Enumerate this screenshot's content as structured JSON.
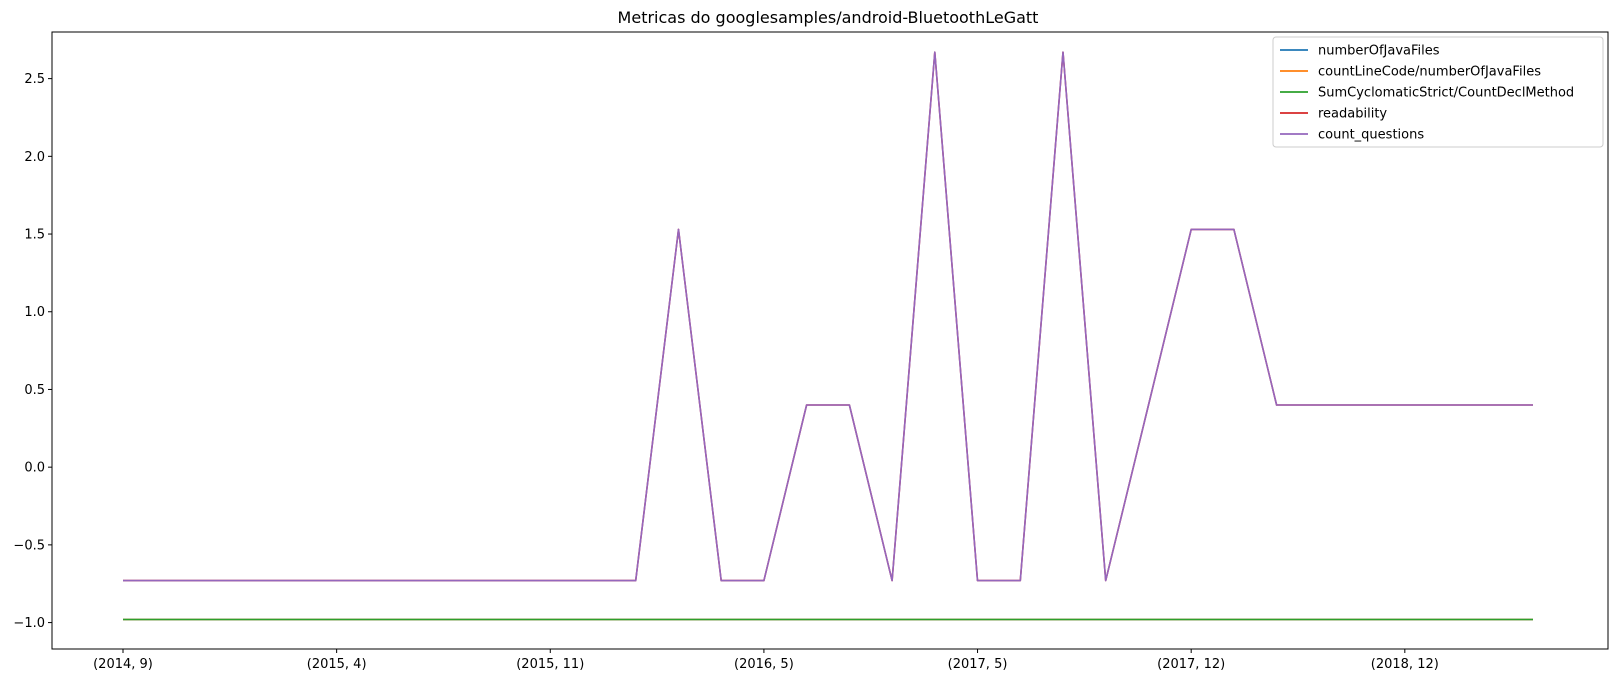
{
  "chart_data": {
    "type": "line",
    "title": "Metricas do googlesamples/android-BluetoothLeGatt",
    "xlabel": "",
    "ylabel": "",
    "x_tick_labels": [
      "(2014, 9)",
      "(2015, 4)",
      "(2015, 11)",
      "(2016, 5)",
      "(2017, 5)",
      "(2017, 12)",
      "(2018, 12)"
    ],
    "x_tick_indices": [
      0,
      5,
      10,
      15,
      20,
      25,
      30
    ],
    "x_count": 34,
    "ylim": [
      -1.17,
      2.8
    ],
    "y_ticks": [
      -1.0,
      -0.5,
      0.0,
      0.5,
      1.0,
      1.5,
      2.0,
      2.5
    ],
    "grid": false,
    "legend_position": "top-right",
    "series": [
      {
        "name": "numberOfJavaFiles",
        "color": "#1f77b4",
        "values": [
          -0.98,
          -0.98,
          -0.98,
          -0.98,
          -0.98,
          -0.98,
          -0.98,
          -0.98,
          -0.98,
          -0.98,
          -0.98,
          -0.98,
          -0.98,
          -0.98,
          -0.98,
          -0.98,
          -0.98,
          -0.98,
          -0.98,
          -0.98,
          -0.98,
          -0.98,
          -0.98,
          -0.98,
          -0.98,
          -0.98,
          -0.98,
          -0.98,
          -0.98,
          -0.98,
          -0.98,
          -0.98,
          -0.98,
          -0.98
        ]
      },
      {
        "name": "countLineCode/numberOfJavaFiles",
        "color": "#ff7f0e",
        "values": [
          -0.98,
          -0.98,
          -0.98,
          -0.98,
          -0.98,
          -0.98,
          -0.98,
          -0.98,
          -0.98,
          -0.98,
          -0.98,
          -0.98,
          -0.98,
          -0.98,
          -0.98,
          -0.98,
          -0.98,
          -0.98,
          -0.98,
          -0.98,
          -0.98,
          -0.98,
          -0.98,
          -0.98,
          -0.98,
          -0.98,
          -0.98,
          -0.98,
          -0.98,
          -0.98,
          -0.98,
          -0.98,
          -0.98,
          -0.98
        ]
      },
      {
        "name": "SumCyclomaticStrict/CountDeclMethod",
        "color": "#2ca02c",
        "values": [
          -0.98,
          -0.98,
          -0.98,
          -0.98,
          -0.98,
          -0.98,
          -0.98,
          -0.98,
          -0.98,
          -0.98,
          -0.98,
          -0.98,
          -0.98,
          -0.98,
          -0.98,
          -0.98,
          -0.98,
          -0.98,
          -0.98,
          -0.98,
          -0.98,
          -0.98,
          -0.98,
          -0.98,
          -0.98,
          -0.98,
          -0.98,
          -0.98,
          -0.98,
          -0.98,
          -0.98,
          -0.98,
          -0.98,
          -0.98
        ]
      },
      {
        "name": "readability",
        "color": "#d62728",
        "values": [
          -0.73,
          -0.73,
          -0.73,
          -0.73,
          -0.73,
          -0.73,
          -0.73,
          -0.73,
          -0.73,
          -0.73,
          -0.73,
          -0.73,
          -0.73,
          1.53,
          -0.73,
          -0.73,
          0.4,
          0.4,
          -0.73,
          2.67,
          -0.73,
          -0.73,
          2.67,
          -0.73,
          0.4,
          1.53,
          1.53,
          0.4,
          0.4,
          0.4,
          0.4,
          0.4,
          0.4,
          0.4
        ]
      },
      {
        "name": "count_questions",
        "color": "#9467bd",
        "values": [
          -0.73,
          -0.73,
          -0.73,
          -0.73,
          -0.73,
          -0.73,
          -0.73,
          -0.73,
          -0.73,
          -0.73,
          -0.73,
          -0.73,
          -0.73,
          1.53,
          -0.73,
          -0.73,
          0.4,
          0.4,
          -0.73,
          2.67,
          -0.73,
          -0.73,
          2.67,
          -0.73,
          0.4,
          1.53,
          1.53,
          0.4,
          0.4,
          0.4,
          0.4,
          0.4,
          0.4,
          0.4
        ]
      }
    ]
  }
}
